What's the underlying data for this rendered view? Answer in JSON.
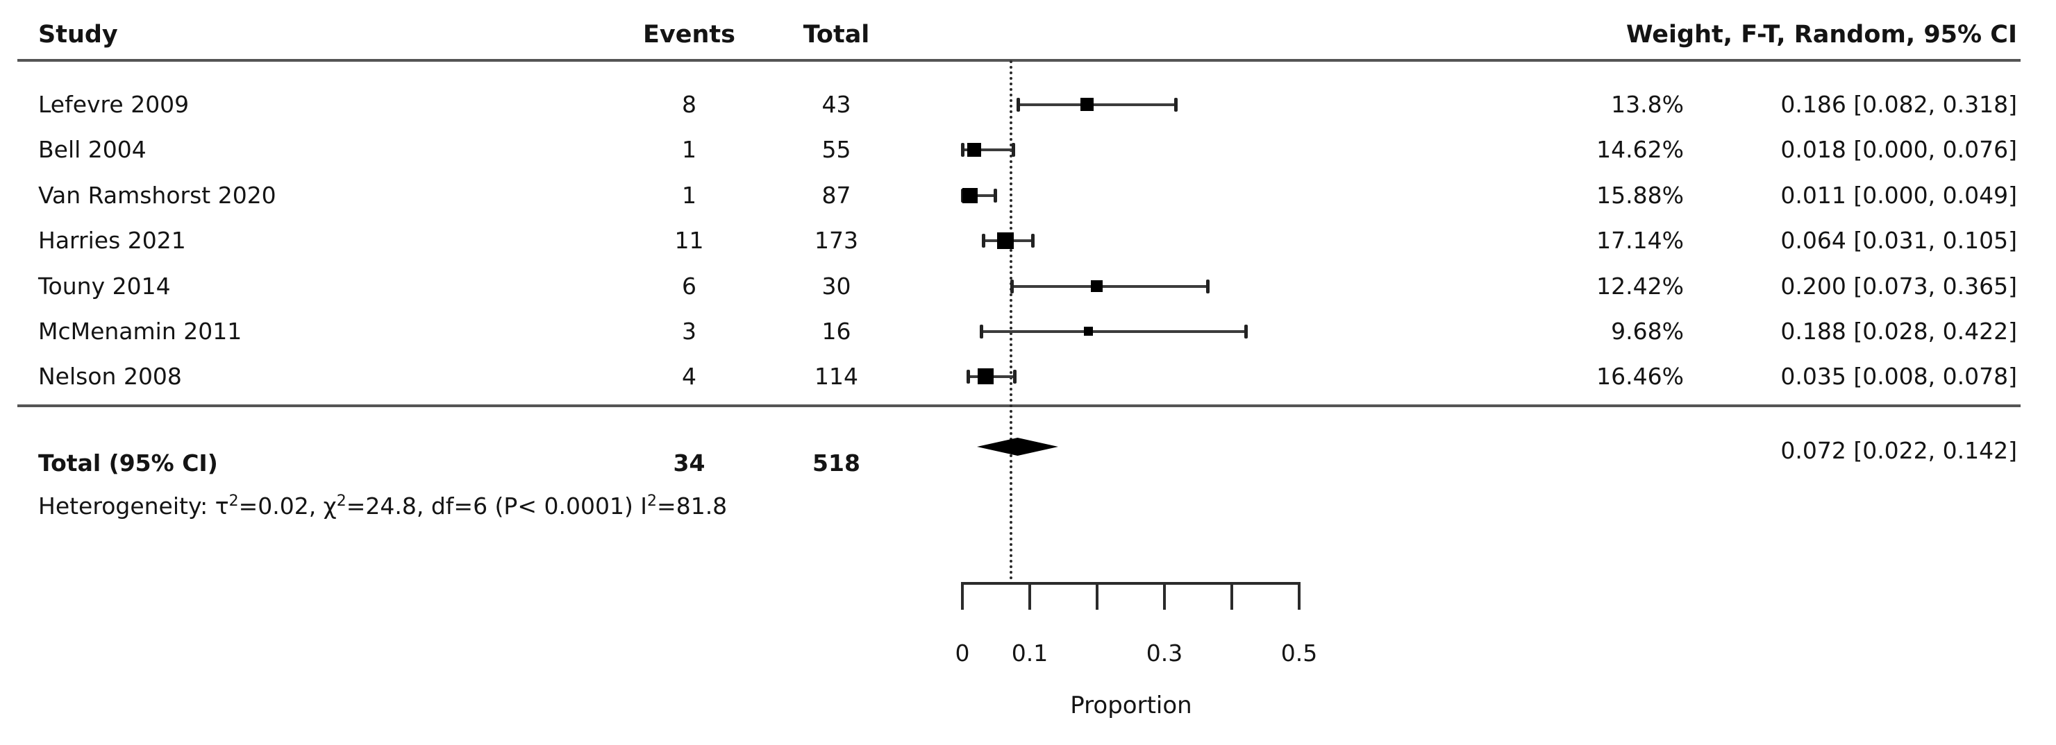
{
  "header": {
    "study": "Study",
    "events": "Events",
    "total": "Total",
    "right": "Weight, F-T, Random, 95% CI"
  },
  "rows": [
    {
      "study": "Lefevre 2009",
      "events": "8",
      "total": "43",
      "weight": "13.8%",
      "ci_label": "0.186 [0.082, 0.318]"
    },
    {
      "study": "Bell 2004",
      "events": "1",
      "total": "55",
      "weight": "14.62%",
      "ci_label": "0.018 [0.000, 0.076]"
    },
    {
      "study": "Van Ramshorst 2020",
      "events": "1",
      "total": "87",
      "weight": "15.88%",
      "ci_label": "0.011 [0.000, 0.049]"
    },
    {
      "study": "Harries 2021",
      "events": "11",
      "total": "173",
      "weight": "17.14%",
      "ci_label": "0.064 [0.031, 0.105]"
    },
    {
      "study": "Touny 2014",
      "events": "6",
      "total": "30",
      "weight": "12.42%",
      "ci_label": "0.200 [0.073, 0.365]"
    },
    {
      "study": "McMenamin 2011",
      "events": "3",
      "total": "16",
      "weight": "9.68%",
      "ci_label": "0.188 [0.028, 0.422]"
    },
    {
      "study": "Nelson 2008",
      "events": "4",
      "total": "114",
      "weight": "16.46%",
      "ci_label": "0.035 [0.008, 0.078]"
    }
  ],
  "total": {
    "label": "Total (95% CI)",
    "events": "34",
    "total": "518",
    "ci_label": "0.072 [0.022, 0.142]"
  },
  "heterogeneity": {
    "segments": [
      {
        "t": "Heterogeneity: τ"
      },
      {
        "sup": "2"
      },
      {
        "t": "=0.02, χ"
      },
      {
        "sup": "2"
      },
      {
        "t": "=24.8, df=6 (P< 0.0001) I"
      },
      {
        "sup": "2"
      },
      {
        "t": "=81.8"
      }
    ]
  },
  "axis": {
    "xlabel": "Proportion",
    "min": 0,
    "max": 0.5,
    "ticks": [
      {
        "v": 0,
        "label": "0"
      },
      {
        "v": 0.1,
        "label": "0.1"
      },
      {
        "v": 0.2,
        "label": ""
      },
      {
        "v": 0.3,
        "label": "0.3"
      },
      {
        "v": 0.4,
        "label": ""
      },
      {
        "v": 0.5,
        "label": "0.5"
      }
    ]
  },
  "colors": {
    "text": "#141414",
    "rule": "#555555",
    "marker": "#000000",
    "ci_line": "#3c3c3c",
    "reference_line": "#2a2a2a"
  },
  "chart_data": {
    "type": "scatter",
    "subtype": "forest_plot",
    "title": "",
    "xlabel": "Proportion",
    "xlim": [
      0,
      0.5
    ],
    "x_ticks": [
      0,
      0.1,
      0.2,
      0.3,
      0.4,
      0.5
    ],
    "x_tick_labels": [
      "0",
      "0.1",
      "",
      "0.3",
      "",
      "0.5"
    ],
    "grid": false,
    "reference_line_x": 0.072,
    "effect_measure": "Proportion",
    "model": "F-T, Random, 95% CI",
    "studies": [
      {
        "study": "Lefevre 2009",
        "events": 8,
        "total": 43,
        "weight_pct": 13.8,
        "estimate": 0.186,
        "ci_low": 0.082,
        "ci_high": 0.318
      },
      {
        "study": "Bell 2004",
        "events": 1,
        "total": 55,
        "weight_pct": 14.62,
        "estimate": 0.018,
        "ci_low": 0.0,
        "ci_high": 0.076
      },
      {
        "study": "Van Ramshorst 2020",
        "events": 1,
        "total": 87,
        "weight_pct": 15.88,
        "estimate": 0.011,
        "ci_low": 0.0,
        "ci_high": 0.049
      },
      {
        "study": "Harries 2021",
        "events": 11,
        "total": 173,
        "weight_pct": 17.14,
        "estimate": 0.064,
        "ci_low": 0.031,
        "ci_high": 0.105
      },
      {
        "study": "Touny 2014",
        "events": 6,
        "total": 30,
        "weight_pct": 12.42,
        "estimate": 0.2,
        "ci_low": 0.073,
        "ci_high": 0.365
      },
      {
        "study": "McMenamin 2011",
        "events": 3,
        "total": 16,
        "weight_pct": 9.68,
        "estimate": 0.188,
        "ci_low": 0.028,
        "ci_high": 0.422
      },
      {
        "study": "Nelson 2008",
        "events": 4,
        "total": 114,
        "weight_pct": 16.46,
        "estimate": 0.035,
        "ci_low": 0.008,
        "ci_high": 0.078
      }
    ],
    "pooled": {
      "label": "Total (95% CI)",
      "events": 34,
      "total": 518,
      "estimate": 0.072,
      "ci_low": 0.022,
      "ci_high": 0.142
    },
    "heterogeneity": {
      "tau2": 0.02,
      "chi2": 24.8,
      "df": 6,
      "p": "< 0.0001",
      "I2": 81.8
    }
  }
}
